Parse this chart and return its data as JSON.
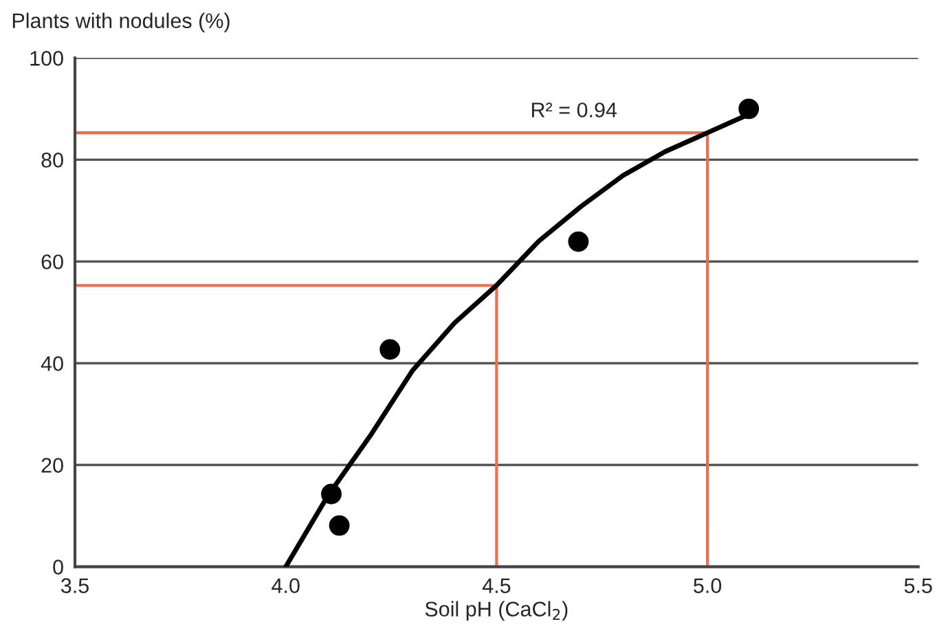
{
  "chart_data": {
    "type": "scatter",
    "ylabel": "Plants with nodules (%)",
    "xlabel": "Soil pH (CaCl$_{2}$)",
    "annotations": [
      "R² = 0.94"
    ],
    "xlim": [
      3.5,
      5.5
    ],
    "xticks": [
      {
        "value": 3.5,
        "label": "3.5"
      },
      {
        "value": 4.0,
        "label": "4.0"
      },
      {
        "value": 4.5,
        "label": "4.5"
      },
      {
        "value": 5.0,
        "label": "5.0"
      },
      {
        "value": 5.5,
        "label": "5.5"
      }
    ],
    "ylim": [
      0,
      100
    ],
    "yticks": [
      0,
      20,
      40,
      60,
      80,
      100
    ],
    "grid": "y",
    "series": [
      {
        "marker": "circle",
        "color": "#000000",
        "x": [
          4.108,
          4.127,
          4.247,
          4.694,
          5.098
        ],
        "values": [
          14.3,
          8.1,
          42.7,
          63.9,
          90.0
        ]
      },
      {
        "type": "line",
        "marker": "none",
        "color": "#000000",
        "x": [
          4.0,
          4.1,
          4.2,
          4.3,
          4.4,
          4.5,
          4.6,
          4.7,
          4.8,
          4.9,
          5.0,
          5.1
        ],
        "values": [
          0,
          14,
          25.7,
          38.5,
          47.9,
          55.3,
          64,
          70.8,
          76.9,
          81.6,
          85.3,
          89
        ]
      },
      {
        "type": "line",
        "marker": "none",
        "color": "#f26b4a",
        "x": [
          3.5,
          4.5,
          4.5
        ],
        "values": [
          55.3,
          55.3,
          0
        ]
      },
      {
        "type": "line",
        "marker": "none",
        "color": "#f26b4a",
        "x": [
          3.5,
          5.0,
          5.0
        ],
        "values": [
          85.3,
          85.3,
          0
        ]
      }
    ]
  }
}
